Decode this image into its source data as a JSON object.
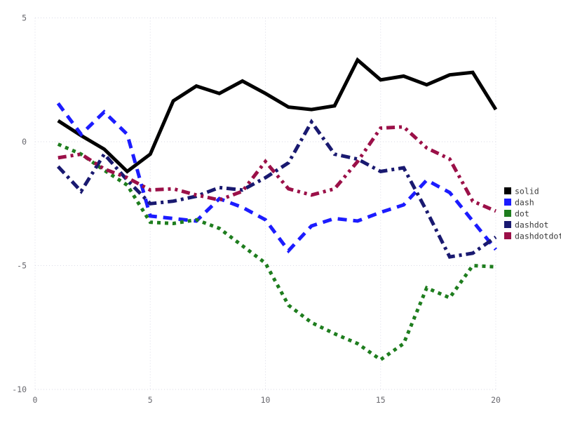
{
  "chart": {
    "title": "",
    "background": "#ffffff",
    "grid_color": "#d9dae6",
    "tick_color": "#68686e",
    "legend_text_color": "#3a3a3a"
  },
  "chart_data": {
    "type": "line",
    "title": "",
    "xlabel": "",
    "ylabel": "",
    "xlim": [
      0,
      20.6
    ],
    "ylim": [
      -10.4,
      5.45
    ],
    "x_ticks": [
      0,
      5,
      10,
      15,
      20
    ],
    "y_ticks": [
      5,
      0,
      -5,
      -10
    ],
    "grid": "dotted",
    "legend_position": "right",
    "x": [
      1,
      2,
      3,
      4,
      5,
      6,
      7,
      8,
      9,
      10,
      11,
      12,
      13,
      14,
      15,
      16,
      17,
      18,
      19,
      20
    ],
    "series": [
      {
        "name": "solid",
        "color": "#000000",
        "line_style": "solid",
        "values": [
          0.85,
          0.25,
          -0.3,
          -1.2,
          -0.5,
          1.65,
          2.25,
          1.95,
          2.45,
          1.95,
          1.4,
          1.3,
          1.45,
          3.3,
          2.5,
          2.65,
          2.3,
          2.7,
          2.8,
          1.3
        ]
      },
      {
        "name": "dash",
        "color": "#1c1cff",
        "line_style": "dash",
        "values": [
          1.55,
          0.3,
          1.2,
          0.3,
          -3.0,
          -3.1,
          -3.2,
          -2.3,
          -2.65,
          -3.15,
          -4.4,
          -3.4,
          -3.1,
          -3.2,
          -2.85,
          -2.55,
          -1.55,
          -2.05,
          -3.2,
          -4.35
        ]
      },
      {
        "name": "dot",
        "color": "#1e7d1e",
        "line_style": "dot",
        "values": [
          -0.1,
          -0.5,
          -1.15,
          -1.75,
          -3.25,
          -3.3,
          -3.15,
          -3.5,
          -4.2,
          -4.9,
          -6.6,
          -7.3,
          -7.75,
          -8.15,
          -8.8,
          -8.15,
          -5.9,
          -6.3,
          -5.0,
          -5.05
        ]
      },
      {
        "name": "dashdot",
        "color": "#191970",
        "line_style": "dashdot",
        "values": [
          -1.0,
          -2.0,
          -0.5,
          -1.55,
          -2.5,
          -2.4,
          -2.2,
          -1.85,
          -1.95,
          -1.45,
          -0.85,
          0.8,
          -0.5,
          -0.7,
          -1.2,
          -1.05,
          -2.8,
          -4.65,
          -4.5,
          -3.85
        ]
      },
      {
        "name": "dashdotdot",
        "color": "#9b1048",
        "line_style": "dashdotdot",
        "values": [
          -0.65,
          -0.5,
          -1.1,
          -1.45,
          -1.95,
          -1.9,
          -2.15,
          -2.35,
          -2.0,
          -0.8,
          -1.9,
          -2.15,
          -1.9,
          -0.8,
          0.55,
          0.6,
          -0.25,
          -0.7,
          -2.4,
          -2.8
        ]
      }
    ],
    "legend": [
      "solid",
      "dash",
      "dot",
      "dashdot",
      "dashdotdot"
    ]
  }
}
